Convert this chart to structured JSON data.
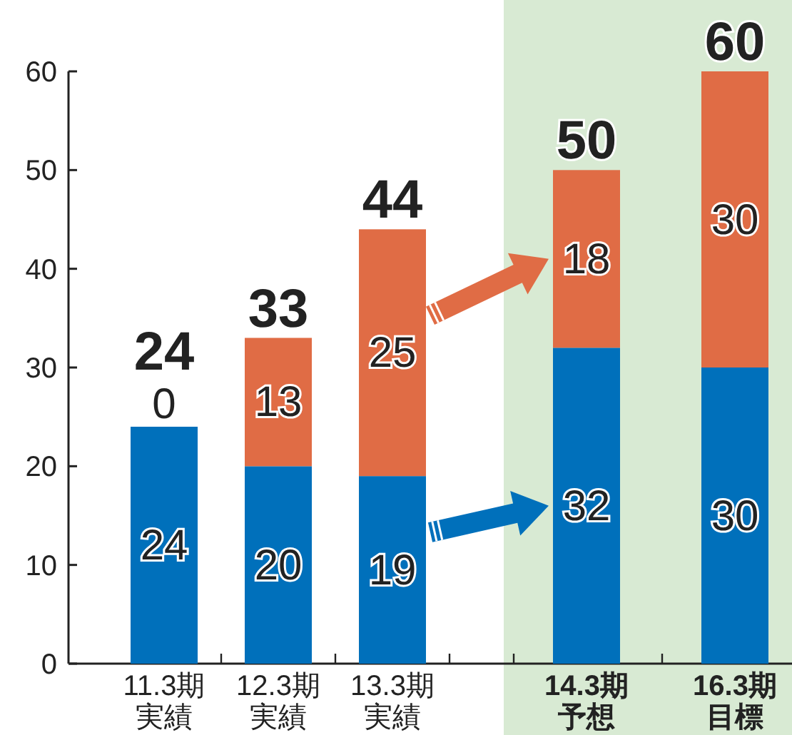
{
  "chart_data": {
    "type": "bar",
    "stacked": true,
    "categories": [
      "11.3期実績",
      "12.3期実績",
      "13.3期実績",
      "14.3期予想",
      "16.3期目標"
    ],
    "series": [
      {
        "color": "#0070bb",
        "values": [
          24,
          20,
          19,
          32,
          30
        ]
      },
      {
        "color": "#e06c45",
        "values": [
          0,
          13,
          25,
          18,
          30
        ]
      }
    ],
    "ylim": [
      0,
      60
    ],
    "yticks": [
      0,
      10,
      20,
      30,
      40,
      50,
      60
    ],
    "data_labels": true,
    "totals": [
      "24",
      "33",
      "44",
      "50",
      "60"
    ],
    "bands": [
      {
        "axis": "x",
        "from": "14.3期予想",
        "to": "16.3期目標",
        "color": "#d8ead3"
      }
    ],
    "grid": false
  }
}
